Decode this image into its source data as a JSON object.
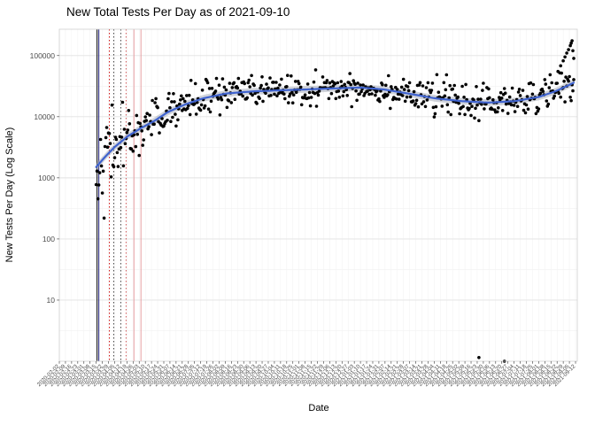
{
  "chart_data": {
    "type": "scatter",
    "title": "New Total Tests Per Day as of 2021-09-10",
    "xlabel": "Date",
    "ylabel": "New Tests Per Day (Log Scale)",
    "y_scale": "log10",
    "ylim": [
      1,
      270000
    ],
    "y_ticks": [
      10,
      100,
      1000,
      10000,
      100000
    ],
    "y_tick_labels": [
      "10",
      "100",
      "1000",
      "10000",
      "100000"
    ],
    "y_minor_ticks": [
      3.162,
      31.62,
      316.2,
      3162,
      31623
    ],
    "x_domain": [
      "2020-02-02",
      "2021-09-14"
    ],
    "x_data_range": [
      "2020-03-15",
      "2021-09-10"
    ],
    "grid": true,
    "legend": "none",
    "colors": {
      "points": "#000000",
      "smooth_line": "#3f63cf",
      "ribbon": "#9aa0b0",
      "grid_major": "#e2e2e2",
      "grid_minor": "#f1f1f1",
      "panel_border": "#cfcfcf",
      "tick_text": "#4d4d4d"
    },
    "x_tick_labels": [
      "2020-02-02",
      "2020-02-09",
      "2020-02-16",
      "2020-02-23",
      "2020-03-01",
      "2020-03-08",
      "2020-03-15",
      "2020-03-22",
      "2020-03-29",
      "2020-04-05",
      "2020-04-12",
      "2020-04-19",
      "2020-04-26",
      "2020-05-03",
      "2020-05-10",
      "2020-05-17",
      "2020-05-24",
      "2020-05-31",
      "2020-06-07",
      "2020-06-14",
      "2020-06-21",
      "2020-06-28",
      "2020-07-05",
      "2020-07-12",
      "2020-07-19",
      "2020-07-26",
      "2020-08-02",
      "2020-08-09",
      "2020-08-16",
      "2020-08-23",
      "2020-08-30",
      "2020-09-06",
      "2020-09-13",
      "2020-09-20",
      "2020-09-27",
      "2020-10-04",
      "2020-10-11",
      "2020-10-18",
      "2020-10-25",
      "2020-11-01",
      "2020-11-08",
      "2020-11-15",
      "2020-11-22",
      "2020-11-29",
      "2020-12-06",
      "2020-12-13",
      "2020-12-20",
      "2020-12-27",
      "2021-01-03",
      "2021-01-10",
      "2021-01-17",
      "2021-01-24",
      "2021-01-31",
      "2021-02-07",
      "2021-02-14",
      "2021-02-21",
      "2021-02-28",
      "2021-03-07",
      "2021-03-14",
      "2021-03-21",
      "2021-03-28",
      "2021-04-04",
      "2021-04-11",
      "2021-04-18",
      "2021-04-25",
      "2021-05-02",
      "2021-05-09",
      "2021-05-16",
      "2021-05-23",
      "2021-05-30",
      "2021-06-06",
      "2021-06-13",
      "2021-06-20",
      "2021-06-27",
      "2021-07-04",
      "2021-07-11",
      "2021-07-18",
      "2021-07-25",
      "2021-08-01",
      "2021-08-08",
      "2021-08-15",
      "2021-08-22",
      "2021-08-29",
      "2021-09-05",
      "2021-09-12"
    ],
    "trend": [
      {
        "date": "2020-03-15",
        "value": 1500
      },
      {
        "date": "2020-03-25",
        "value": 2200
      },
      {
        "date": "2020-04-05",
        "value": 3200
      },
      {
        "date": "2020-04-20",
        "value": 4800
      },
      {
        "date": "2020-05-05",
        "value": 6500
      },
      {
        "date": "2020-05-20",
        "value": 8500
      },
      {
        "date": "2020-06-05",
        "value": 12000
      },
      {
        "date": "2020-06-25",
        "value": 16000
      },
      {
        "date": "2020-07-15",
        "value": 20000
      },
      {
        "date": "2020-08-10",
        "value": 24000
      },
      {
        "date": "2020-09-10",
        "value": 26000
      },
      {
        "date": "2020-10-10",
        "value": 27000
      },
      {
        "date": "2020-11-10",
        "value": 28000
      },
      {
        "date": "2020-12-10",
        "value": 29000
      },
      {
        "date": "2021-01-10",
        "value": 30000
      },
      {
        "date": "2021-02-05",
        "value": 28000
      },
      {
        "date": "2021-03-05",
        "value": 24000
      },
      {
        "date": "2021-04-05",
        "value": 20000
      },
      {
        "date": "2021-05-05",
        "value": 18000
      },
      {
        "date": "2021-06-05",
        "value": 17000
      },
      {
        "date": "2021-07-05",
        "value": 18000
      },
      {
        "date": "2021-08-01",
        "value": 21000
      },
      {
        "date": "2021-08-20",
        "value": 26000
      },
      {
        "date": "2021-09-10",
        "value": 36000
      }
    ],
    "scatter_sd_log10": [
      {
        "until": "2020-04-15",
        "sd": 0.3
      },
      {
        "until": "2020-06-15",
        "sd": 0.2
      },
      {
        "until": "2020-09-01",
        "sd": 0.15
      },
      {
        "until": "2021-04-01",
        "sd": 0.12
      },
      {
        "until": "2021-07-15",
        "sd": 0.14
      },
      {
        "until": "2021-09-10",
        "sd": 0.16
      }
    ],
    "extra_points": [
      {
        "date": "2021-08-23",
        "value": 55000
      },
      {
        "date": "2021-08-26",
        "value": 68000
      },
      {
        "date": "2021-08-29",
        "value": 82000
      },
      {
        "date": "2021-08-31",
        "value": 95000
      },
      {
        "date": "2021-09-02",
        "value": 110000
      },
      {
        "date": "2021-09-04",
        "value": 125000
      },
      {
        "date": "2021-09-06",
        "value": 145000
      },
      {
        "date": "2021-09-07",
        "value": 160000
      },
      {
        "date": "2021-09-08",
        "value": 175000
      },
      {
        "date": "2021-09-09",
        "value": 120000
      },
      {
        "date": "2021-09-10",
        "value": 90000
      }
    ],
    "outliers": [
      {
        "date": "2021-05-25",
        "value": 1.15
      },
      {
        "date": "2021-06-23",
        "value": 1.0
      }
    ],
    "reference_lines": [
      {
        "date": "2020-03-16",
        "color": "#000000",
        "style": "solid"
      },
      {
        "date": "2020-03-18",
        "color": "#1f1f7a",
        "style": "solid"
      },
      {
        "date": "2020-03-30",
        "color": "#cc0000",
        "style": "dotted"
      },
      {
        "date": "2020-04-04",
        "color": "#333333",
        "style": "dotted"
      },
      {
        "date": "2020-04-12",
        "color": "#333333",
        "style": "dotted"
      },
      {
        "date": "2020-04-18",
        "color": "#cc4444",
        "style": "dotted"
      },
      {
        "date": "2020-04-27",
        "color": "#e8a0a4",
        "style": "solid"
      },
      {
        "date": "2020-05-05",
        "color": "#e8a0a4",
        "style": "solid"
      }
    ],
    "seed": 42
  }
}
